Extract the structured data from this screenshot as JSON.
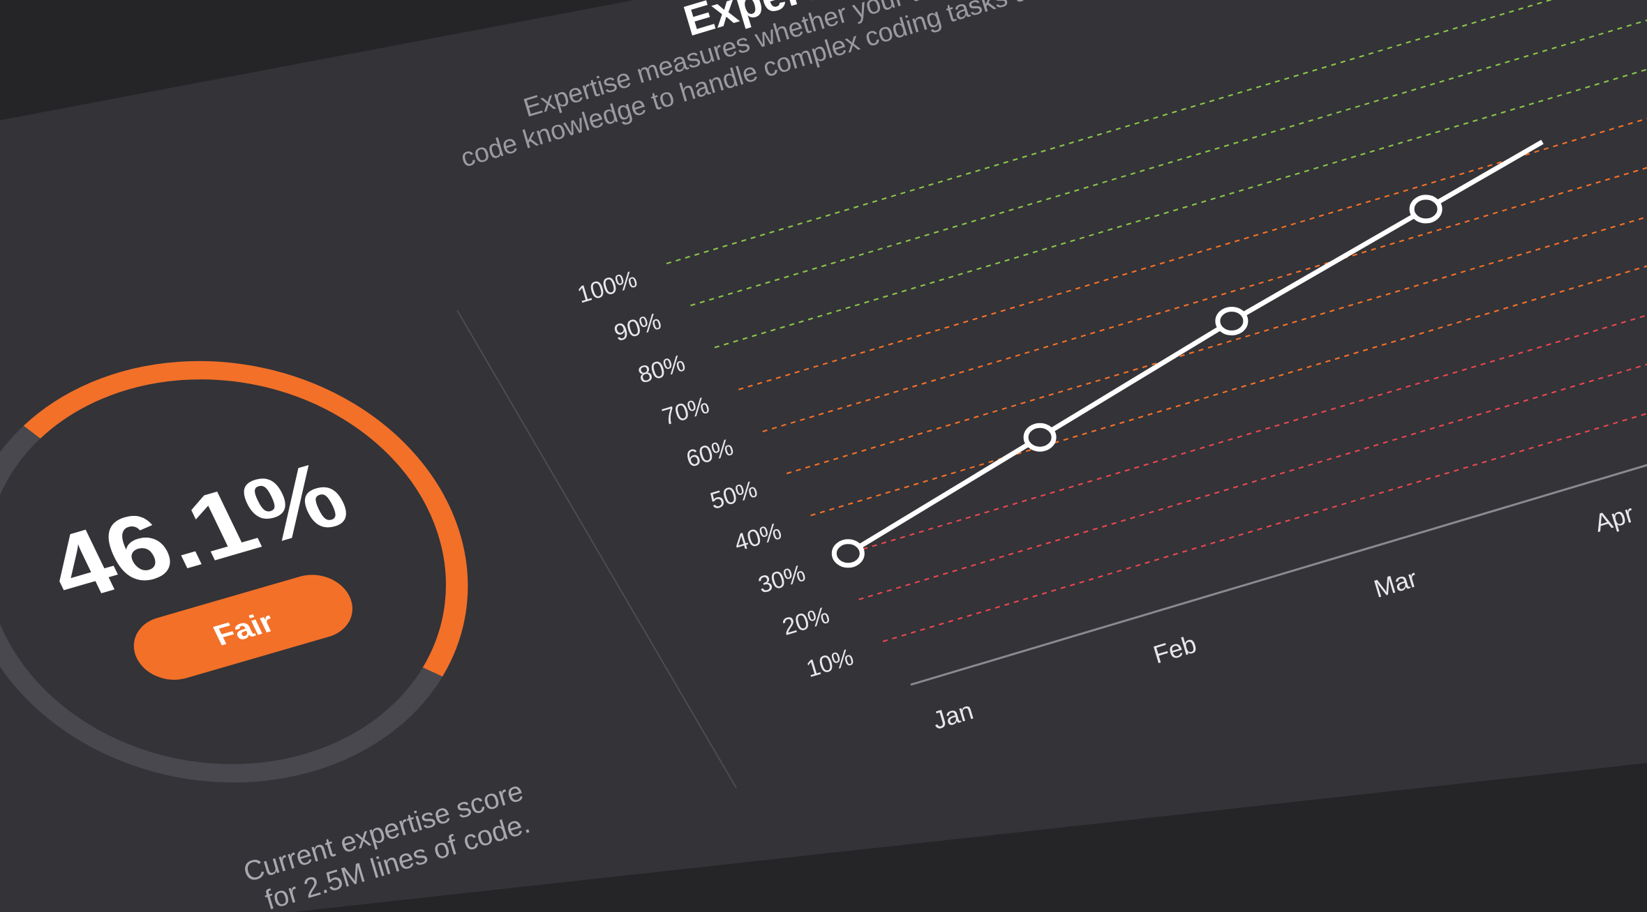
{
  "header": {
    "title": "Expertise",
    "description_line1": "Expertise measures whether your team has sufficient",
    "description_line2": "code knowledge to handle complex coding tasks and changes."
  },
  "score": {
    "value_text": "46.1%",
    "value": 46.1,
    "badge": "Fair",
    "caption_line1": "Current expertise score",
    "caption_line2": "for 2.5M lines of code."
  },
  "colors": {
    "accent": "#F37028",
    "good": "#8BC34A",
    "fair": "#F37028",
    "poor": "#E8474F",
    "panel": "#333338",
    "text": "#FFFFFF"
  },
  "chart_data": {
    "type": "line",
    "x": [
      "Jan",
      "Feb",
      "Mar",
      "Apr"
    ],
    "series": [
      {
        "values": [
          30,
          42,
          54,
          65
        ]
      }
    ],
    "y_ticks": [
      "100%",
      "90%",
      "80%",
      "70%",
      "60%",
      "50%",
      "40%",
      "30%",
      "20%",
      "10%"
    ],
    "ylim": [
      10,
      100
    ],
    "grid": true,
    "grid_bands": [
      {
        "from": 80,
        "to": 100,
        "color": "good"
      },
      {
        "from": 40,
        "to": 70,
        "color": "fair"
      },
      {
        "from": 10,
        "to": 30,
        "color": "poor"
      }
    ]
  }
}
